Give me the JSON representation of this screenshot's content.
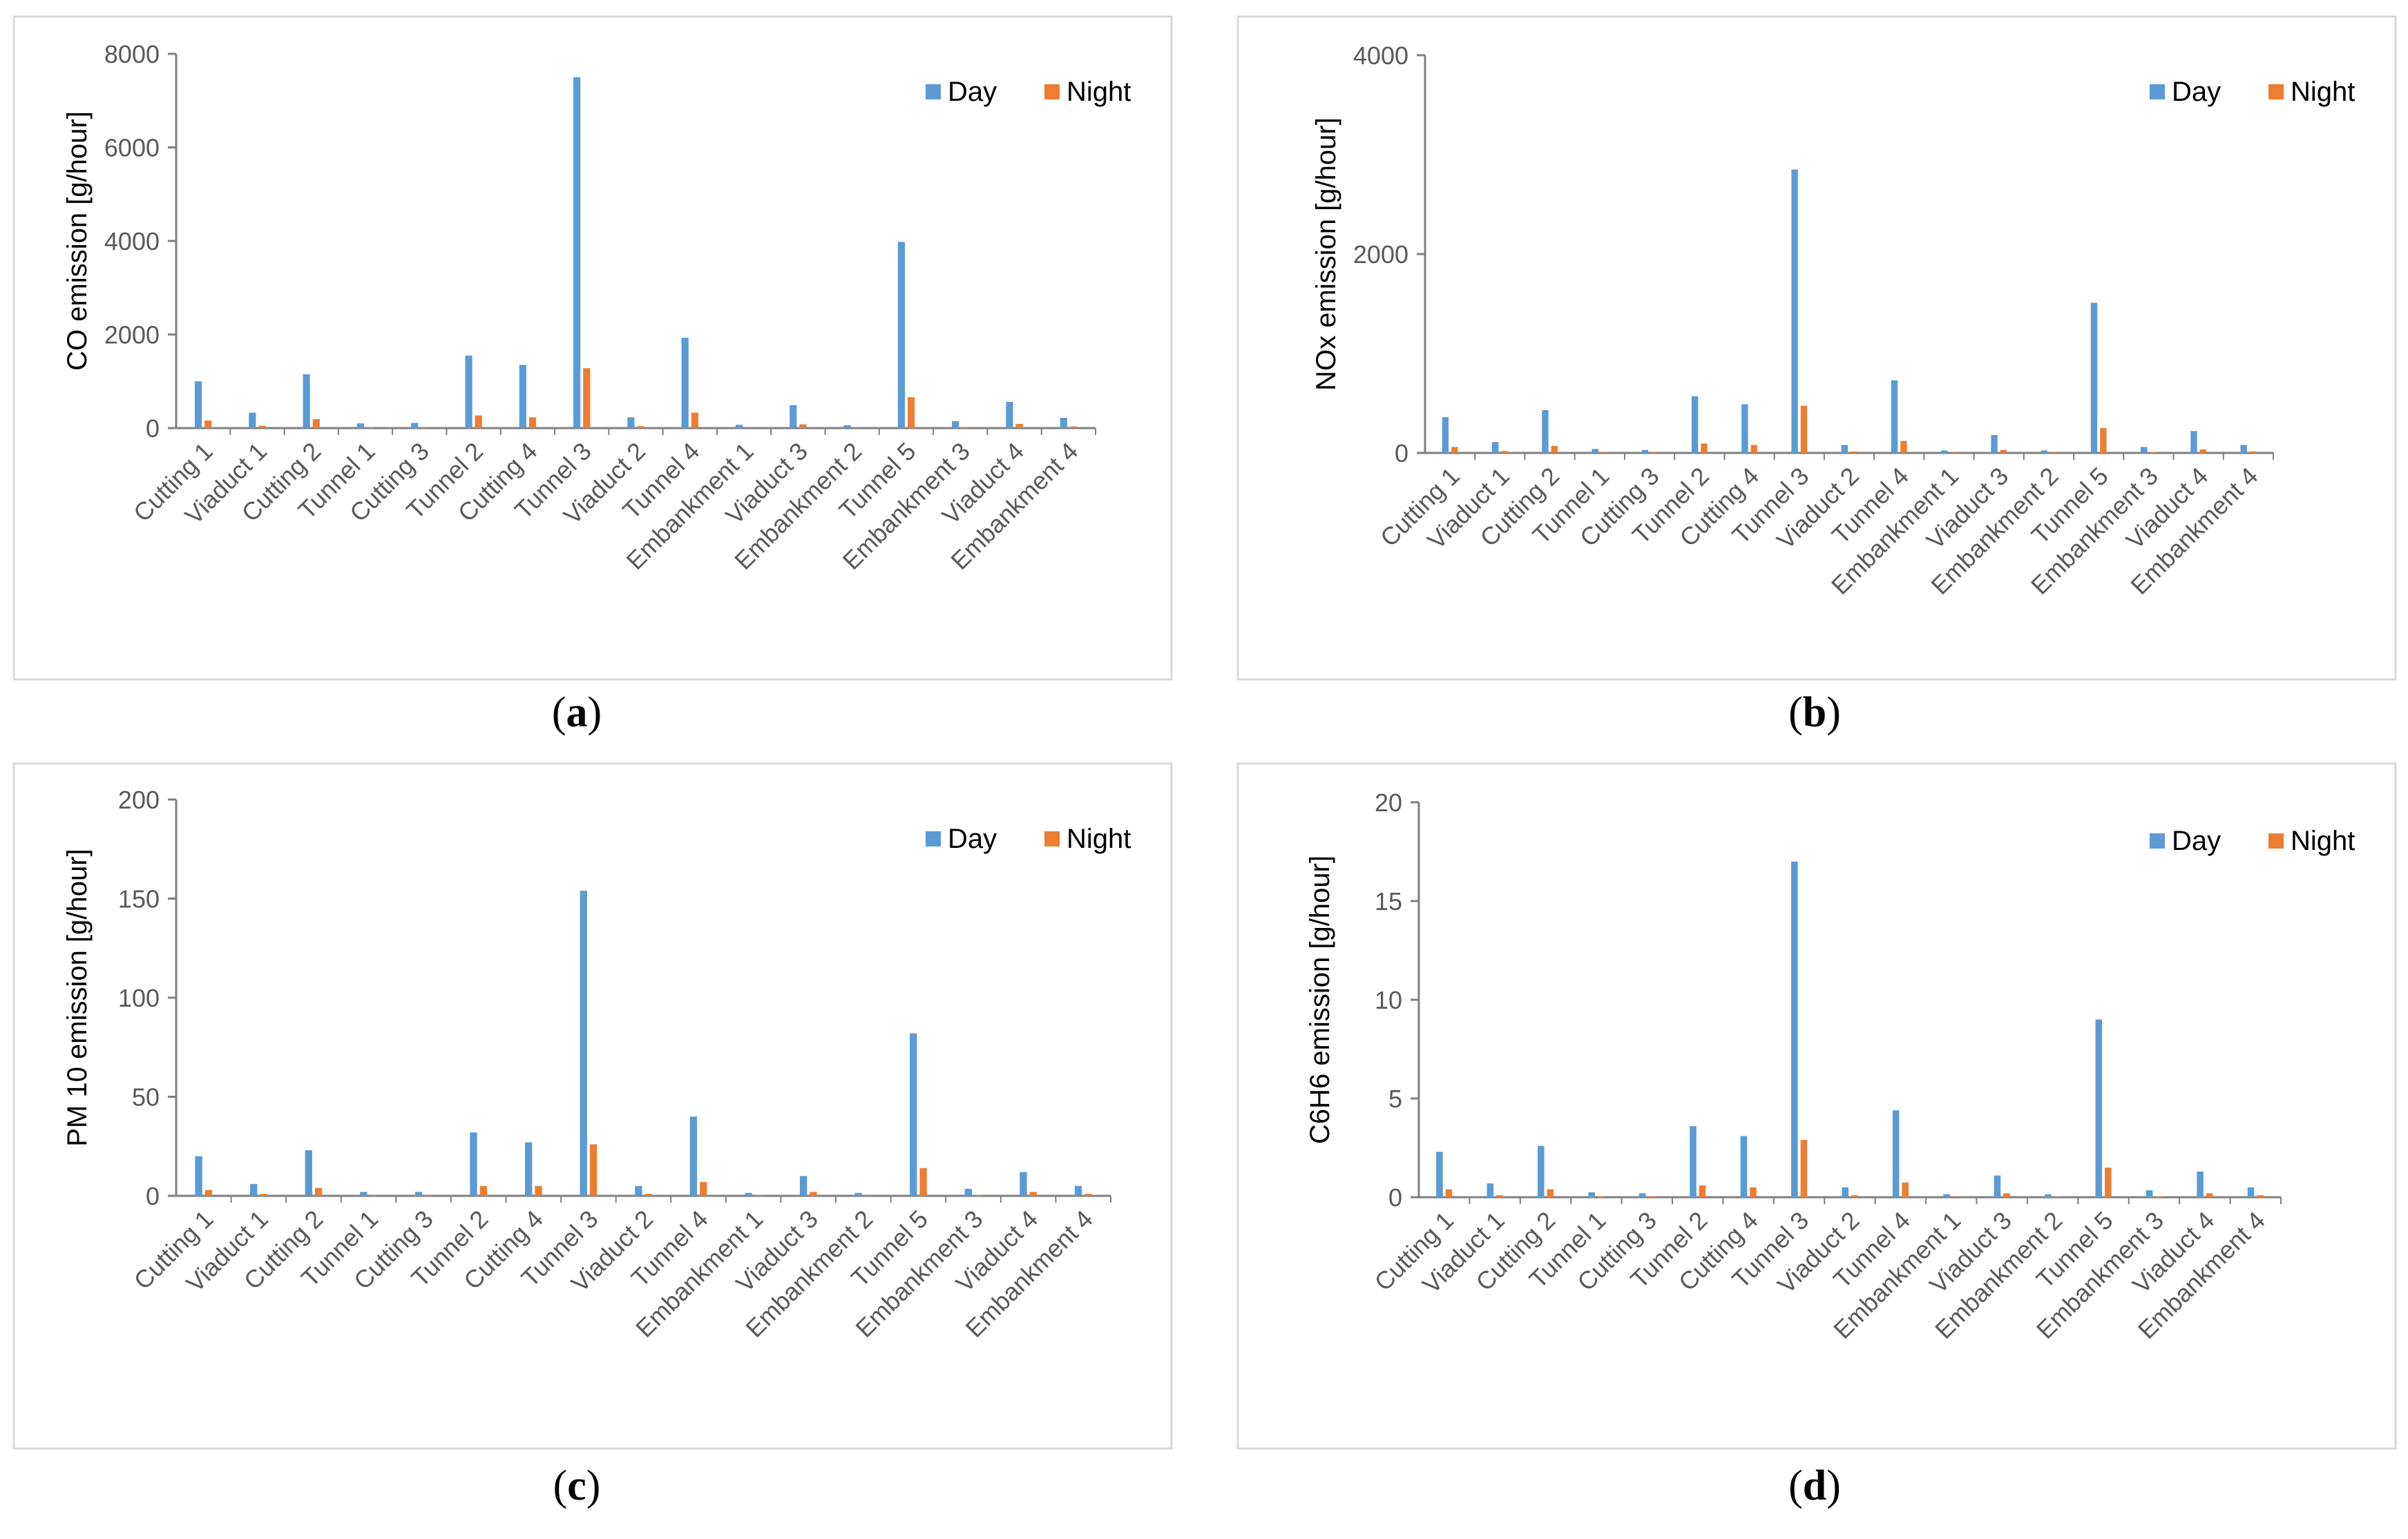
{
  "colors": {
    "day": "#5b9bd5",
    "night": "#ed7d31",
    "border": "#d9d9d9",
    "axis": "#7f7f7f"
  },
  "chart_data": [
    {
      "type": "bar",
      "panel_label": "a",
      "ylabel": "CO emission [g/hour]",
      "ylim": [
        0,
        8000
      ],
      "yticks": [
        0,
        2000,
        4000,
        6000,
        8000
      ],
      "grid": false,
      "legend_position": "top-right",
      "categories": [
        "Cutting 1",
        "Viaduct 1",
        "Cutting 2",
        "Tunnel 1",
        "Cutting 3",
        "Tunnel 2",
        "Cutting 4",
        "Tunnel 3",
        "Viaduct 2",
        "Tunnel 4",
        "Embankment 1",
        "Viaduct 3",
        "Embankment 2",
        "Tunnel 5",
        "Embankment 3",
        "Viaduct 4",
        "Embankment 4"
      ],
      "series": [
        {
          "name": "Day",
          "values": [
            1000,
            330,
            1150,
            100,
            110,
            1550,
            1350,
            7500,
            230,
            1930,
            70,
            490,
            60,
            3980,
            150,
            560,
            220
          ]
        },
        {
          "name": "Night",
          "values": [
            160,
            50,
            190,
            15,
            15,
            270,
            230,
            1280,
            40,
            330,
            10,
            80,
            10,
            660,
            25,
            90,
            35
          ]
        }
      ]
    },
    {
      "type": "bar",
      "panel_label": "b",
      "ylabel": "NOx emission [g/hour]",
      "ylim": [
        0,
        4000
      ],
      "yticks": [
        0,
        2000,
        4000
      ],
      "grid": false,
      "legend_position": "top-right",
      "categories": [
        "Cutting 1",
        "Viaduct 1",
        "Cutting 2",
        "Tunnel 1",
        "Cutting 3",
        "Tunnel 2",
        "Cutting 4",
        "Tunnel 3",
        "Viaduct 2",
        "Tunnel 4",
        "Embankment 1",
        "Viaduct 3",
        "Embankment 2",
        "Tunnel 5",
        "Embankment 3",
        "Viaduct 4",
        "Embankment 4"
      ],
      "series": [
        {
          "name": "Day",
          "values": [
            360,
            110,
            430,
            40,
            30,
            570,
            490,
            2850,
            80,
            730,
            25,
            180,
            25,
            1510,
            60,
            220,
            80
          ]
        },
        {
          "name": "Night",
          "values": [
            60,
            20,
            70,
            5,
            5,
            95,
            80,
            475,
            15,
            120,
            5,
            30,
            5,
            250,
            10,
            35,
            15
          ]
        }
      ]
    },
    {
      "type": "bar",
      "panel_label": "c",
      "ylabel": "PM 10 emission [g/hour]",
      "ylim": [
        0,
        200
      ],
      "yticks": [
        0,
        50,
        100,
        150,
        200
      ],
      "grid": false,
      "legend_position": "top-right",
      "categories": [
        "Cutting 1",
        "Viaduct 1",
        "Cutting 2",
        "Tunnel 1",
        "Cutting 3",
        "Tunnel 2",
        "Cutting 4",
        "Tunnel 3",
        "Viaduct 2",
        "Tunnel 4",
        "Embankment 1",
        "Viaduct 3",
        "Embankment 2",
        "Tunnel 5",
        "Embankment 3",
        "Viaduct 4",
        "Embankment 4"
      ],
      "series": [
        {
          "name": "Day",
          "values": [
            20,
            6,
            23,
            2,
            2,
            32,
            27,
            154,
            5,
            40,
            1.5,
            10,
            1.5,
            82,
            3.5,
            12,
            5
          ]
        },
        {
          "name": "Night",
          "values": [
            3,
            1,
            4,
            0.3,
            0.3,
            5,
            5,
            26,
            1,
            7,
            0.3,
            2,
            0.3,
            14,
            0.5,
            2,
            1
          ]
        }
      ]
    },
    {
      "type": "bar",
      "panel_label": "d",
      "ylabel": "C6H6 emission [g/hour]",
      "ylim": [
        0,
        20
      ],
      "yticks": [
        0,
        5,
        10,
        15,
        20
      ],
      "grid": false,
      "legend_position": "top-right",
      "categories": [
        "Cutting 1",
        "Viaduct 1",
        "Cutting 2",
        "Tunnel 1",
        "Cutting 3",
        "Tunnel 2",
        "Cutting 4",
        "Tunnel 3",
        "Viaduct 2",
        "Tunnel 4",
        "Embankment 1",
        "Viaduct 3",
        "Embankment 2",
        "Tunnel 5",
        "Embankment 3",
        "Viaduct 4",
        "Embankment 4"
      ],
      "series": [
        {
          "name": "Day",
          "values": [
            2.3,
            0.7,
            2.6,
            0.25,
            0.2,
            3.6,
            3.1,
            17,
            0.5,
            4.4,
            0.15,
            1.1,
            0.15,
            9,
            0.35,
            1.3,
            0.5
          ]
        },
        {
          "name": "Night",
          "values": [
            0.4,
            0.1,
            0.4,
            0.05,
            0.05,
            0.6,
            0.5,
            2.9,
            0.1,
            0.75,
            0.02,
            0.2,
            0.02,
            1.5,
            0.05,
            0.2,
            0.1
          ]
        }
      ]
    }
  ]
}
